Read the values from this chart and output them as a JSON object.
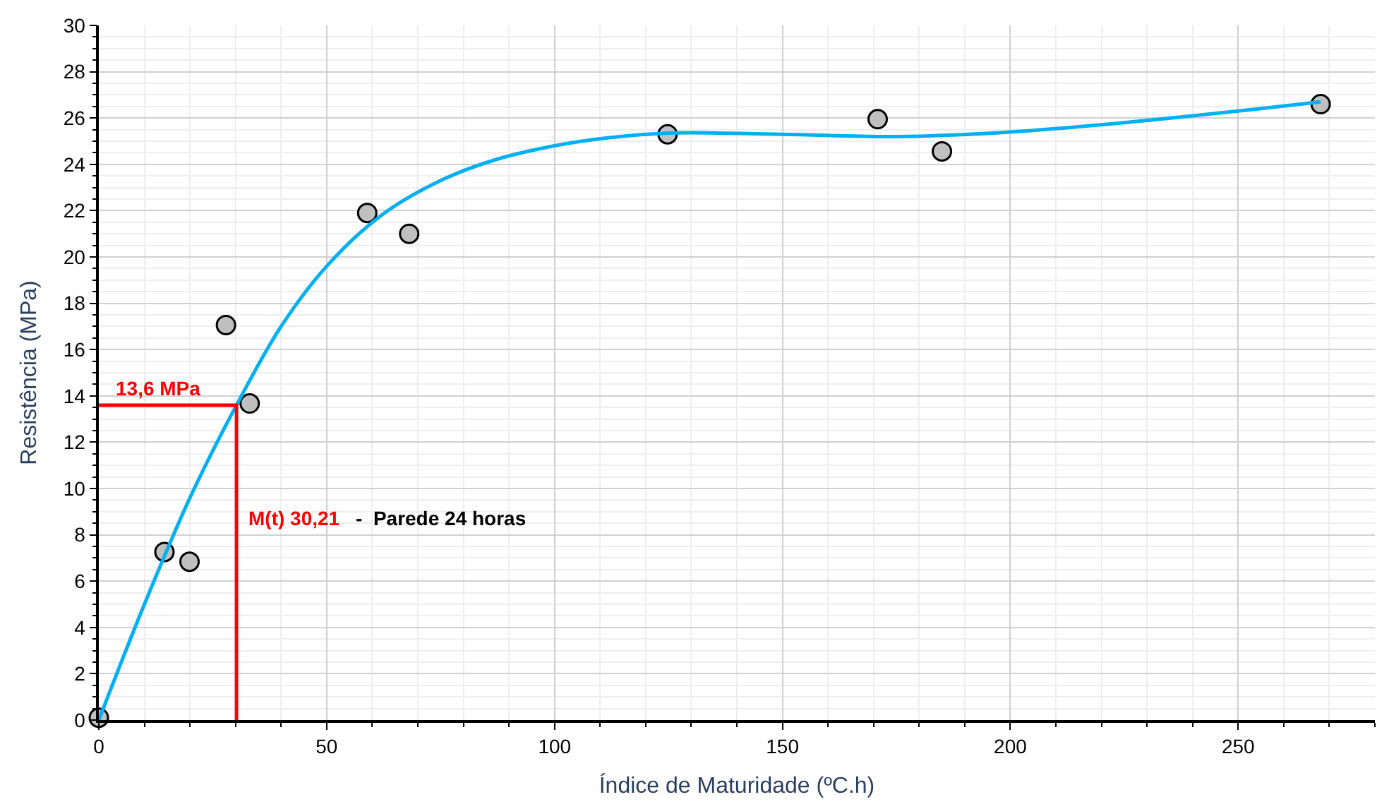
{
  "chart_data": {
    "type": "scatter",
    "xlabel": "Índice de Maturidade (ºC.h)",
    "ylabel": "Resistência (MPa)",
    "xlim": [
      0,
      280
    ],
    "xticks": [
      0,
      50,
      100,
      150,
      200,
      250
    ],
    "ylim": [
      0,
      30
    ],
    "yticks": [
      0,
      2,
      4,
      6,
      8,
      10,
      12,
      14,
      16,
      18,
      20,
      22,
      24,
      26,
      28,
      30
    ],
    "grid": true,
    "series": [
      {
        "marker": "circle",
        "color": "#c0c0c0",
        "x": [
          0,
          14.4,
          19.9,
          27.9,
          33.1,
          58.9,
          68.1,
          124.8,
          170.9,
          185.0,
          268.1
        ],
        "values": [
          0.1,
          7.26,
          6.84,
          17.06,
          13.67,
          21.9,
          21.0,
          25.3,
          25.95,
          24.56,
          26.6
        ]
      },
      {
        "type": "line",
        "color": "#00b0f0",
        "x": [
          0,
          10,
          20,
          30.21,
          40,
          50,
          62,
          75,
          87,
          100,
          112,
          125,
          150,
          175,
          200,
          225,
          250,
          268.1
        ],
        "values": [
          0,
          5.0,
          9.6,
          13.6,
          17.0,
          19.6,
          21.8,
          23.3,
          24.2,
          24.8,
          25.15,
          25.35,
          25.3,
          25.2,
          25.4,
          25.8,
          26.3,
          26.7
        ]
      },
      {
        "type": "line",
        "color": "#ff0000",
        "x": [
          0,
          30.21,
          30.21
        ],
        "values": [
          13.6,
          13.6,
          0
        ]
      }
    ],
    "annotations": [
      {
        "text": "13,6 MPa",
        "x": 2,
        "y": 13.6
      },
      "M(t) 30,21",
      "-  Parede 24 horas"
    ]
  }
}
